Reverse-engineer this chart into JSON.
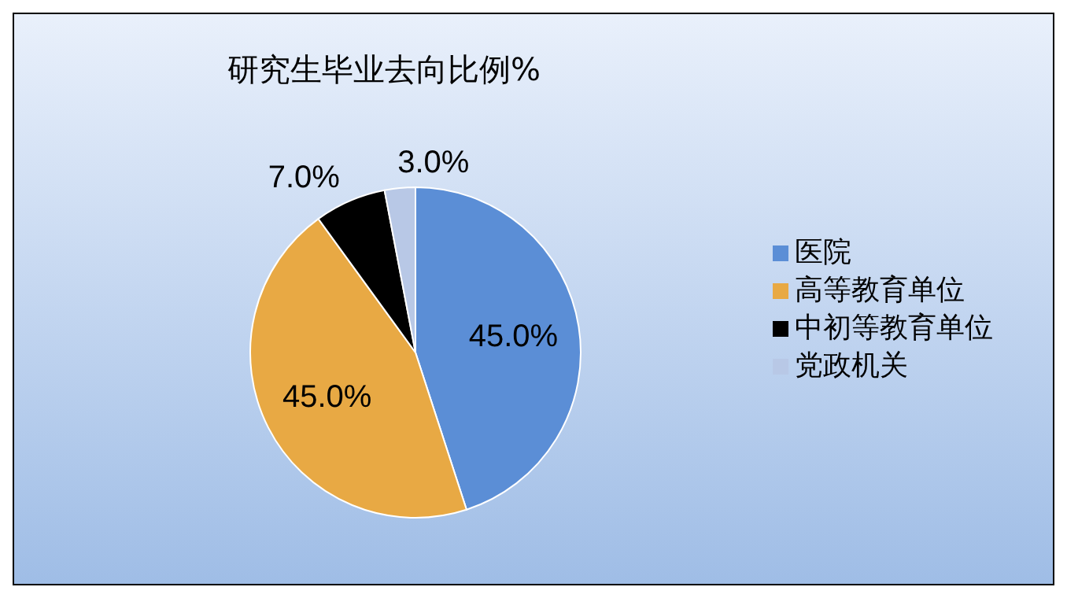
{
  "chart_data": {
    "type": "pie",
    "title": "研究生毕业去向比例%",
    "categories": [
      "医院",
      "高等教育单位",
      "中初等教育单位",
      "党政机关"
    ],
    "values": [
      45,
      45,
      7,
      3
    ],
    "value_labels": [
      "45.0%",
      "45.0%",
      "7.0%",
      "3.0%"
    ],
    "colors": [
      "#5b8ed6",
      "#e8a944",
      "#000000",
      "#b8c8e6"
    ],
    "legend": "right"
  }
}
